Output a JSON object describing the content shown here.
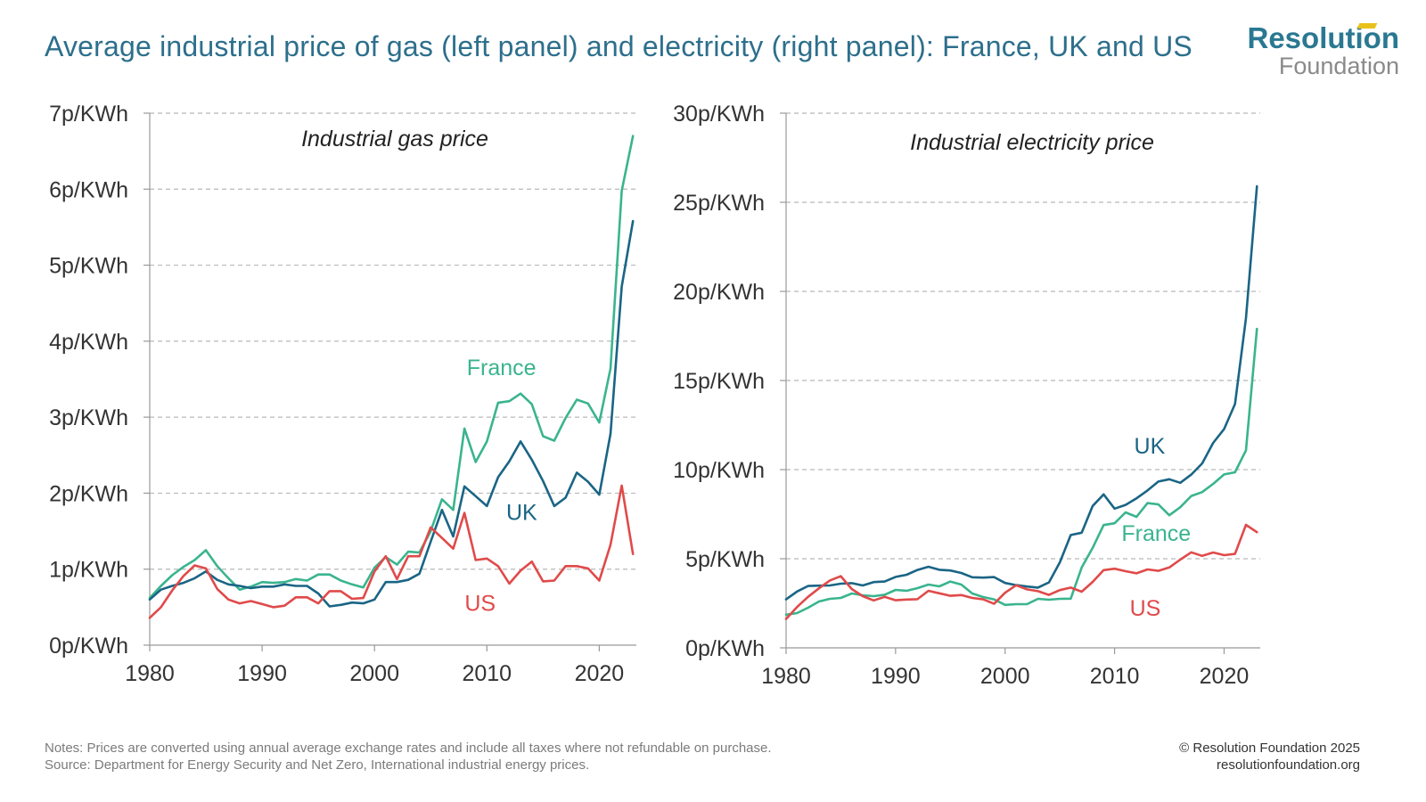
{
  "title": "Average industrial price of gas (left panel) and electricity (right panel): France, UK and US",
  "logo": {
    "line1": "Resolution",
    "line2": "Foundation"
  },
  "notes": {
    "line1": "Notes: Prices are converted using annual average exchange rates and include all taxes where not refundable on purchase.",
    "line2": "Source: Department for Energy Security and Net Zero, International industrial energy prices."
  },
  "credit": {
    "line1": "© Resolution Foundation 2025",
    "line2": "resolutionfoundation.org"
  },
  "colors": {
    "France": "#3ab48e",
    "UK": "#1a6585",
    "US": "#e04a4a",
    "grid": "#b8b8b8",
    "axis": "#999999"
  },
  "chart_data": [
    {
      "type": "line",
      "title": "Industrial gas price",
      "x": [
        1980,
        1981,
        1982,
        1983,
        1984,
        1985,
        1986,
        1987,
        1988,
        1989,
        1990,
        1991,
        1992,
        1993,
        1994,
        1995,
        1996,
        1997,
        1998,
        1999,
        2000,
        2001,
        2002,
        2003,
        2004,
        2005,
        2006,
        2007,
        2008,
        2009,
        2010,
        2011,
        2012,
        2013,
        2014,
        2015,
        2016,
        2017,
        2018,
        2019,
        2020,
        2021,
        2022,
        2023
      ],
      "xticks": [
        "1980",
        "1990",
        "2000",
        "2010",
        "2020"
      ],
      "xtick_values": [
        1980,
        1990,
        2000,
        2010,
        2020
      ],
      "xlim": [
        1980,
        2023.3
      ],
      "ylim": [
        0,
        7
      ],
      "yticks": [
        0,
        1,
        2,
        3,
        4,
        5,
        6,
        7
      ],
      "ytick_labels": [
        "0p/KWh",
        "1p/KWh",
        "2p/KWh",
        "3p/KWh",
        "4p/KWh",
        "5p/KWh",
        "6p/KWh",
        "7p/KWh"
      ],
      "grid": true,
      "series": [
        {
          "name": "France",
          "label_x": 2011.3,
          "label_y": 3.55,
          "values": [
            0.62,
            0.78,
            0.92,
            1.03,
            1.12,
            1.25,
            1.04,
            0.88,
            0.73,
            0.77,
            0.83,
            0.82,
            0.83,
            0.87,
            0.85,
            0.93,
            0.93,
            0.85,
            0.8,
            0.76,
            1.02,
            1.16,
            1.06,
            1.23,
            1.22,
            1.5,
            1.92,
            1.78,
            2.85,
            2.41,
            2.68,
            3.19,
            3.21,
            3.31,
            3.17,
            2.75,
            2.69,
            2.99,
            3.23,
            3.18,
            2.93,
            3.64,
            5.98,
            6.7
          ]
        },
        {
          "name": "UK",
          "label_x": 2013.1,
          "label_y": 1.65,
          "values": [
            0.6,
            0.73,
            0.78,
            0.82,
            0.88,
            0.97,
            0.86,
            0.8,
            0.78,
            0.75,
            0.77,
            0.77,
            0.8,
            0.78,
            0.78,
            0.68,
            0.51,
            0.53,
            0.56,
            0.55,
            0.6,
            0.83,
            0.83,
            0.86,
            0.94,
            1.36,
            1.78,
            1.43,
            2.09,
            1.96,
            1.83,
            2.21,
            2.42,
            2.68,
            2.44,
            2.16,
            1.83,
            1.94,
            2.27,
            2.15,
            1.98,
            2.78,
            4.72,
            5.58
          ]
        },
        {
          "name": "US",
          "label_x": 2009.4,
          "label_y": 0.45,
          "values": [
            0.36,
            0.5,
            0.72,
            0.91,
            1.05,
            1.01,
            0.74,
            0.6,
            0.55,
            0.58,
            0.54,
            0.5,
            0.52,
            0.63,
            0.63,
            0.55,
            0.71,
            0.71,
            0.61,
            0.62,
            0.97,
            1.17,
            0.87,
            1.17,
            1.17,
            1.55,
            1.41,
            1.27,
            1.74,
            1.12,
            1.14,
            1.04,
            0.81,
            0.98,
            1.1,
            0.84,
            0.85,
            1.04,
            1.04,
            1.01,
            0.85,
            1.32,
            2.1,
            1.2
          ]
        }
      ]
    },
    {
      "type": "line",
      "title": "Industrial electricity price",
      "x": [
        1980,
        1981,
        1982,
        1983,
        1984,
        1985,
        1986,
        1987,
        1988,
        1989,
        1990,
        1991,
        1992,
        1993,
        1994,
        1995,
        1996,
        1997,
        1998,
        1999,
        2000,
        2001,
        2002,
        2003,
        2004,
        2005,
        2006,
        2007,
        2008,
        2009,
        2010,
        2011,
        2012,
        2013,
        2014,
        2015,
        2016,
        2017,
        2018,
        2019,
        2020,
        2021,
        2022,
        2023
      ],
      "xticks": [
        "1980",
        "1990",
        "2000",
        "2010",
        "2020"
      ],
      "xtick_values": [
        1980,
        1990,
        2000,
        2010,
        2020
      ],
      "xlim": [
        1980,
        2023.3
      ],
      "ylim": [
        0,
        30
      ],
      "yticks": [
        0,
        5,
        10,
        15,
        20,
        25,
        30
      ],
      "ytick_labels": [
        "0p/KWh",
        "5p/KWh",
        "10p/KWh",
        "15p/KWh",
        "20p/KWh",
        "25p/KWh",
        "30p/KWh"
      ],
      "grid": true,
      "series": [
        {
          "name": "UK",
          "label_x": 2013.2,
          "label_y": 10.9,
          "values": [
            2.72,
            3.16,
            3.47,
            3.49,
            3.5,
            3.6,
            3.63,
            3.5,
            3.69,
            3.72,
            3.98,
            4.1,
            4.37,
            4.55,
            4.38,
            4.34,
            4.2,
            3.96,
            3.94,
            3.97,
            3.64,
            3.52,
            3.44,
            3.38,
            3.67,
            4.8,
            6.33,
            6.46,
            7.96,
            8.61,
            7.81,
            8.02,
            8.39,
            8.83,
            9.33,
            9.46,
            9.26,
            9.72,
            10.35,
            11.5,
            12.28,
            13.68,
            18.5,
            25.9
          ]
        },
        {
          "name": "France",
          "label_x": 2013.8,
          "label_y": 6.0,
          "values": [
            1.86,
            1.95,
            2.25,
            2.6,
            2.75,
            2.8,
            3.05,
            2.95,
            2.9,
            2.98,
            3.25,
            3.2,
            3.35,
            3.55,
            3.45,
            3.72,
            3.55,
            3.05,
            2.85,
            2.72,
            2.41,
            2.45,
            2.45,
            2.75,
            2.7,
            2.75,
            2.76,
            4.51,
            5.61,
            6.89,
            6.99,
            7.6,
            7.35,
            8.12,
            8.05,
            7.44,
            7.89,
            8.52,
            8.74,
            9.2,
            9.73,
            9.85,
            11.08,
            17.9
          ]
        },
        {
          "name": "US",
          "label_x": 2012.8,
          "label_y": 1.8,
          "values": [
            1.62,
            2.29,
            2.86,
            3.34,
            3.78,
            4.02,
            3.3,
            2.9,
            2.66,
            2.86,
            2.67,
            2.71,
            2.73,
            3.2,
            3.06,
            2.92,
            2.96,
            2.8,
            2.72,
            2.47,
            3.09,
            3.51,
            3.28,
            3.18,
            2.97,
            3.24,
            3.38,
            3.15,
            3.7,
            4.36,
            4.44,
            4.3,
            4.18,
            4.4,
            4.32,
            4.51,
            4.95,
            5.36,
            5.16,
            5.35,
            5.2,
            5.27,
            6.9,
            6.49
          ]
        }
      ]
    }
  ]
}
